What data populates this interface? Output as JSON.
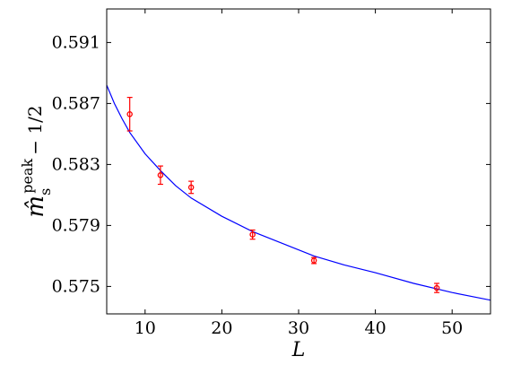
{
  "chart_data": {
    "type": "scatter",
    "xlabel": "L",
    "ylabel": {
      "main": "m̂",
      "sub": "s",
      "sup": "peak",
      "tail": "− 1/2"
    },
    "xlim": [
      5,
      55
    ],
    "ylim": [
      0.5732,
      0.5932
    ],
    "xticks": [
      10,
      20,
      30,
      40,
      50
    ],
    "xtick_labels": [
      "10",
      "20",
      "30",
      "40",
      "50"
    ],
    "yticks": [
      0.575,
      0.579,
      0.583,
      0.587,
      0.591
    ],
    "ytick_labels": [
      "0.575",
      "0.579",
      "0.583",
      "0.587",
      "0.591"
    ],
    "grid": false,
    "series": [
      {
        "kind": "points_with_error",
        "color": "#ff0000",
        "points": [
          {
            "x": 8,
            "y": 0.5863,
            "err": 0.0011
          },
          {
            "x": 12,
            "y": 0.5823,
            "err": 0.0006
          },
          {
            "x": 16,
            "y": 0.5815,
            "err": 0.0004
          },
          {
            "x": 24,
            "y": 0.5784,
            "err": 0.0003
          },
          {
            "x": 32,
            "y": 0.5767,
            "err": 0.0002
          },
          {
            "x": 48,
            "y": 0.5749,
            "err": 0.0003
          }
        ]
      },
      {
        "kind": "fit_curve",
        "color": "#0000ff",
        "x": [
          5,
          6,
          7,
          8,
          10,
          12,
          14,
          16,
          20,
          24,
          28,
          32,
          36,
          40,
          45,
          50,
          55
        ],
        "y": [
          0.5882,
          0.587,
          0.586,
          0.5851,
          0.5837,
          0.5826,
          0.5816,
          0.5808,
          0.5796,
          0.5786,
          0.5778,
          0.577,
          0.5764,
          0.5759,
          0.5752,
          0.5746,
          0.5741
        ]
      }
    ]
  }
}
